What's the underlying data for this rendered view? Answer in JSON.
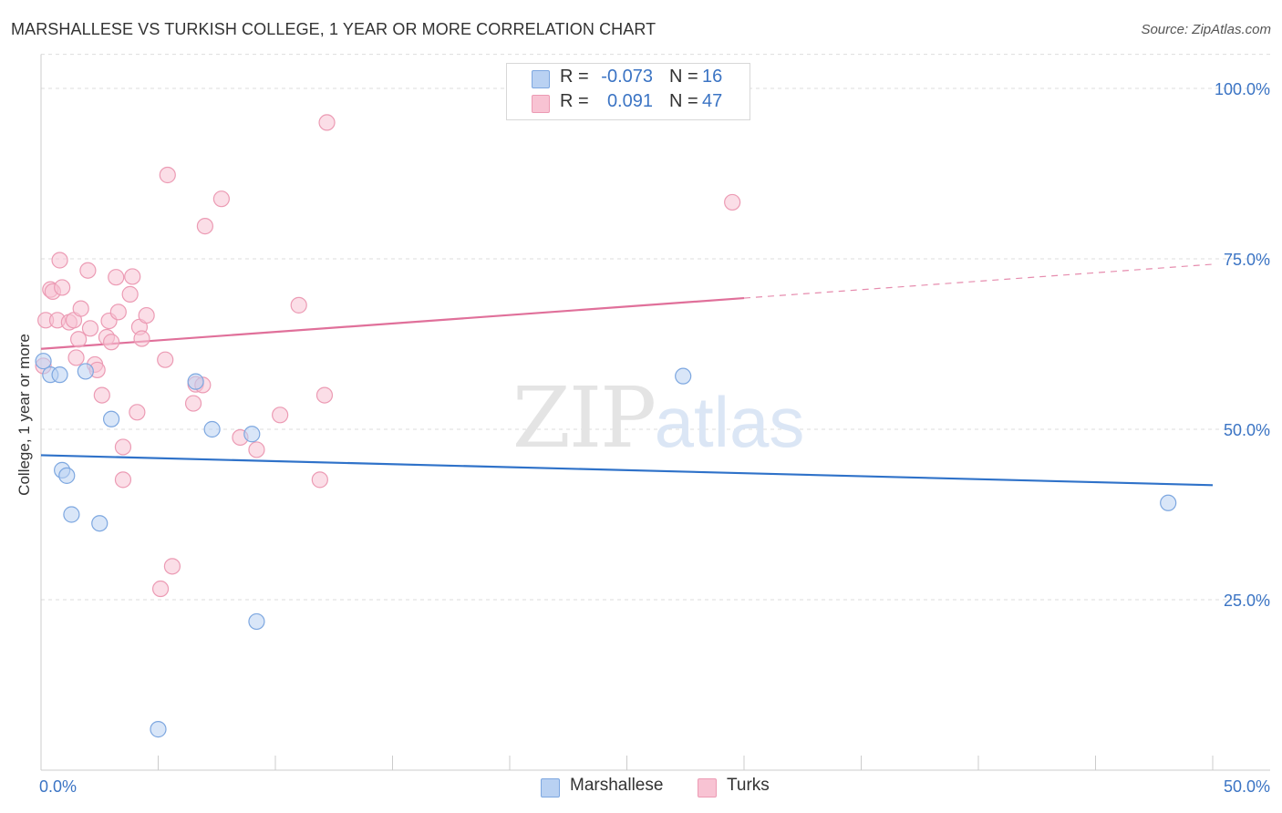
{
  "title": "MARSHALLESE VS TURKISH COLLEGE, 1 YEAR OR MORE CORRELATION CHART",
  "source": "Source: ZipAtlas.com",
  "watermark": {
    "zip": "ZIP",
    "atlas": "atlas"
  },
  "legend": {
    "rows": [
      {
        "r_label": "R =",
        "r_value": "-0.073",
        "n_label": "N =",
        "n_value": "16"
      },
      {
        "r_label": "R =",
        "r_value": "0.091",
        "n_label": "N =",
        "n_value": "47"
      }
    ]
  },
  "bottom_legend": {
    "marshallese": "Marshallese",
    "turks": "Turks"
  },
  "colors": {
    "marshallese_fill": "#b9d1f2",
    "marshallese_stroke": "#7da7e0",
    "marshallese_line": "#2f72c9",
    "turks_fill": "#f8c3d3",
    "turks_stroke": "#ec9bb4",
    "turks_line": "#e0709a",
    "axis_text": "#3b74c4",
    "grid": "#dddddd"
  },
  "chart_data": {
    "type": "scatter",
    "title": "MARSHALLESE VS TURKISH COLLEGE, 1 YEAR OR MORE CORRELATION CHART",
    "xlabel": "",
    "ylabel": "College, 1 year or more",
    "xlim": [
      0,
      50
    ],
    "ylim": [
      0,
      105
    ],
    "x_tick_labels": [
      "0.0%",
      "50.0%"
    ],
    "y_tick_labels": [
      "25.0%",
      "50.0%",
      "75.0%",
      "100.0%"
    ],
    "y_ticks": [
      25,
      50,
      75,
      100
    ],
    "series": [
      {
        "name": "Marshallese",
        "points": [
          [
            0.1,
            60.0
          ],
          [
            0.4,
            58.0
          ],
          [
            0.8,
            58.0
          ],
          [
            0.9,
            44.0
          ],
          [
            1.1,
            43.2
          ],
          [
            1.3,
            37.5
          ],
          [
            1.9,
            58.5
          ],
          [
            2.5,
            36.2
          ],
          [
            3.0,
            51.5
          ],
          [
            5.0,
            6.0
          ],
          [
            6.6,
            57.0
          ],
          [
            7.3,
            50.0
          ],
          [
            9.0,
            49.3
          ],
          [
            9.2,
            21.8
          ],
          [
            27.4,
            57.8
          ],
          [
            48.1,
            39.2
          ]
        ],
        "trend": {
          "x": [
            0,
            50
          ],
          "y": [
            46.2,
            41.8
          ],
          "dashed_from": null
        }
      },
      {
        "name": "Turks",
        "points": [
          [
            0.1,
            59.3
          ],
          [
            0.2,
            66.0
          ],
          [
            0.4,
            70.5
          ],
          [
            0.5,
            70.2
          ],
          [
            0.7,
            66.0
          ],
          [
            0.8,
            74.8
          ],
          [
            0.9,
            70.8
          ],
          [
            1.2,
            65.7
          ],
          [
            1.4,
            66.0
          ],
          [
            1.5,
            60.5
          ],
          [
            1.6,
            63.2
          ],
          [
            1.7,
            67.7
          ],
          [
            2.0,
            73.3
          ],
          [
            2.1,
            64.8
          ],
          [
            2.3,
            59.5
          ],
          [
            2.4,
            58.7
          ],
          [
            2.6,
            55.0
          ],
          [
            2.8,
            63.5
          ],
          [
            2.9,
            65.9
          ],
          [
            3.0,
            62.8
          ],
          [
            3.2,
            72.3
          ],
          [
            3.3,
            67.2
          ],
          [
            3.5,
            47.4
          ],
          [
            3.5,
            42.6
          ],
          [
            3.8,
            69.8
          ],
          [
            3.9,
            72.4
          ],
          [
            4.1,
            52.5
          ],
          [
            4.2,
            65.0
          ],
          [
            4.3,
            63.3
          ],
          [
            4.5,
            66.7
          ],
          [
            5.1,
            26.6
          ],
          [
            5.3,
            60.2
          ],
          [
            5.4,
            87.3
          ],
          [
            5.6,
            29.9
          ],
          [
            6.5,
            53.8
          ],
          [
            6.6,
            56.6
          ],
          [
            6.9,
            56.5
          ],
          [
            7.0,
            79.8
          ],
          [
            7.7,
            83.8
          ],
          [
            8.5,
            48.8
          ],
          [
            9.2,
            47.0
          ],
          [
            10.2,
            52.1
          ],
          [
            11.0,
            68.2
          ],
          [
            11.9,
            42.6
          ],
          [
            12.1,
            55.0
          ],
          [
            12.2,
            95.0
          ],
          [
            29.5,
            83.3
          ]
        ],
        "trend": {
          "x": [
            0,
            50
          ],
          "y": [
            61.8,
            74.2
          ],
          "dashed_from": 30
        }
      }
    ]
  }
}
